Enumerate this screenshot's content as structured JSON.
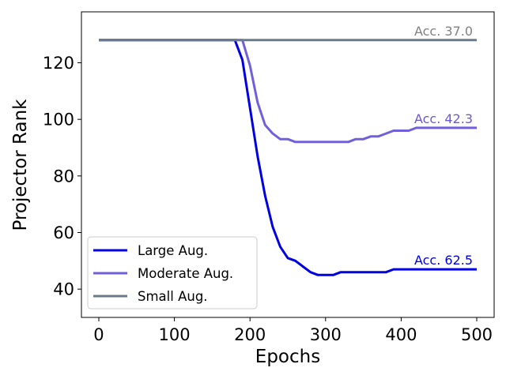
{
  "chart_data": {
    "type": "line",
    "title": "",
    "xlabel": "Epochs",
    "ylabel": "Projector Rank",
    "xlim": [
      -23,
      523
    ],
    "ylim": [
      30,
      138
    ],
    "xticks": [
      0,
      100,
      200,
      300,
      400,
      500
    ],
    "yticks": [
      40,
      60,
      80,
      100,
      120
    ],
    "grid": false,
    "legend_position": "lower-left",
    "series": [
      {
        "name": "Large Aug.",
        "color": "#0000e0",
        "annotation": "Acc. 62.5",
        "annotation_color": "#0000e0",
        "x": [
          0,
          180,
          190,
          200,
          210,
          220,
          230,
          240,
          250,
          260,
          270,
          280,
          290,
          300,
          310,
          320,
          330,
          340,
          350,
          360,
          370,
          380,
          390,
          400,
          410,
          420,
          430,
          440,
          450,
          460,
          470,
          480,
          490,
          500
        ],
        "y": [
          128,
          128,
          121,
          104,
          87,
          73,
          62,
          55,
          51,
          50,
          48,
          46,
          45,
          45,
          45,
          46,
          46,
          46,
          46,
          46,
          46,
          46,
          47,
          47,
          47,
          47,
          47,
          47,
          47,
          47,
          47,
          47,
          47,
          47
        ]
      },
      {
        "name": "Moderate Aug.",
        "color": "#7060dc",
        "annotation": "Acc. 42.3",
        "annotation_color": "#6a5acd",
        "x": [
          0,
          190,
          200,
          210,
          220,
          230,
          240,
          250,
          260,
          270,
          280,
          290,
          300,
          310,
          320,
          330,
          340,
          350,
          360,
          370,
          380,
          390,
          400,
          410,
          420,
          430,
          440,
          450,
          460,
          470,
          480,
          490,
          500
        ],
        "y": [
          128,
          128,
          119,
          106,
          98,
          95,
          93,
          93,
          92,
          92,
          92,
          92,
          92,
          92,
          92,
          92,
          93,
          93,
          94,
          94,
          95,
          96,
          96,
          96,
          97,
          97,
          97,
          97,
          97,
          97,
          97,
          97,
          97
        ]
      },
      {
        "name": "Small Aug.",
        "color": "#6b7a8a",
        "annotation": "Acc. 37.0",
        "annotation_color": "#808080",
        "x": [
          0,
          500
        ],
        "y": [
          128,
          128
        ]
      }
    ]
  }
}
